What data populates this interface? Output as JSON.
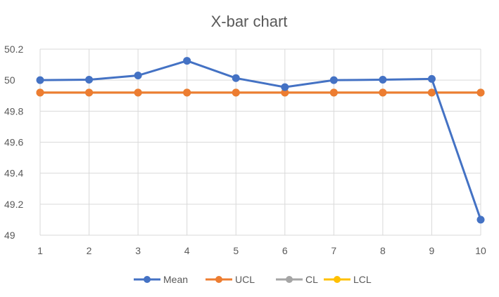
{
  "chart_data": {
    "type": "line",
    "title": "X-bar chart",
    "xlabel": "",
    "ylabel": "",
    "categories": [
      "1",
      "2",
      "3",
      "4",
      "5",
      "6",
      "7",
      "8",
      "9",
      "10"
    ],
    "ylim": [
      49,
      50.2
    ],
    "yticks": [
      "49",
      "49.2",
      "49.4",
      "49.6",
      "49.8",
      "50",
      "50.2"
    ],
    "grid": true,
    "legend": "bottom",
    "series": [
      {
        "name": "Mean",
        "color": "#4472C4",
        "values": [
          50.0,
          50.003,
          50.03,
          50.125,
          50.013,
          49.955,
          50.0,
          50.003,
          50.008,
          49.1
        ]
      },
      {
        "name": "UCL",
        "color": "#ED7D31",
        "values": [
          49.92,
          49.92,
          49.92,
          49.92,
          49.92,
          49.92,
          49.92,
          49.92,
          49.92,
          49.92
        ]
      },
      {
        "name": "CL",
        "color": "#A5A5A5",
        "values": [
          49.92,
          49.92,
          49.92,
          49.92,
          49.92,
          49.92,
          49.92,
          49.92,
          49.92,
          49.92
        ]
      },
      {
        "name": "LCL",
        "color": "#FFC000",
        "values": [
          49.92,
          49.92,
          49.92,
          49.92,
          49.92,
          49.92,
          49.92,
          49.92,
          49.92,
          49.92
        ]
      }
    ]
  }
}
